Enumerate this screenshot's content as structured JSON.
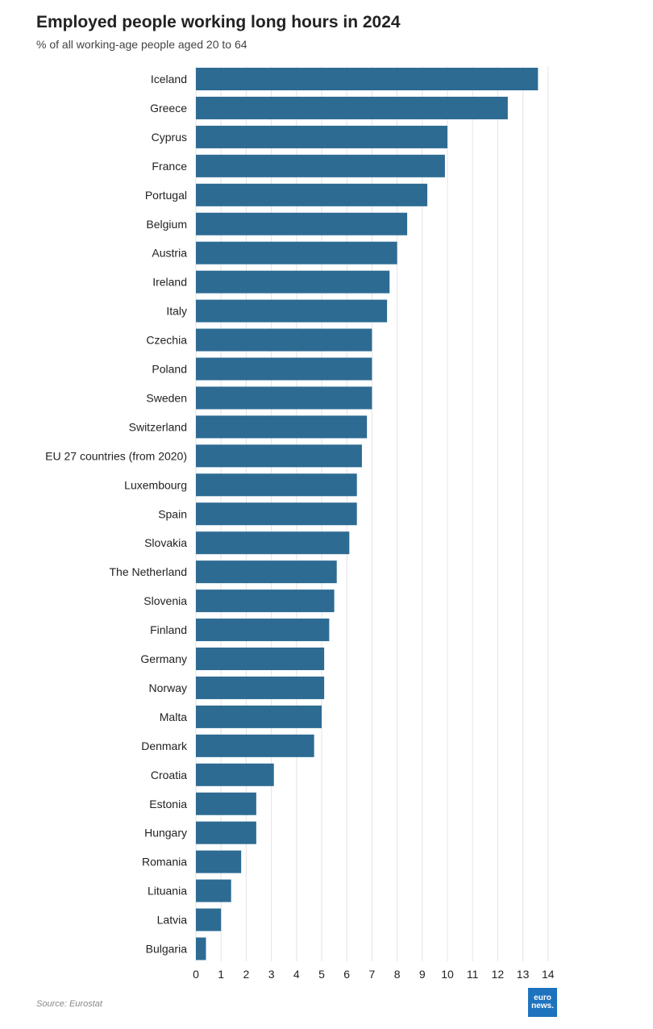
{
  "title": "Employed people working long hours in 2024",
  "subtitle": "% of all working-age people aged 20 to 64",
  "source": "Source: Eurostat",
  "logo": {
    "line1": "euro",
    "line2": "news."
  },
  "colors": {
    "bar": "#2d6b93",
    "grid": "#e3e3e3",
    "logo": "#1e73be"
  },
  "chart_data": {
    "type": "bar",
    "orientation": "horizontal",
    "categories": [
      "Iceland",
      "Greece",
      "Cyprus",
      "France",
      "Portugal",
      "Belgium",
      "Austria",
      "Ireland",
      "Italy",
      "Czechia",
      "Poland",
      "Sweden",
      "Switzerland",
      "EU 27 countries (from 2020)",
      "Luxembourg",
      "Spain",
      "Slovakia",
      "The Netherland",
      "Slovenia",
      "Finland",
      "Germany",
      "Norway",
      "Malta",
      "Denmark",
      "Croatia",
      "Estonia",
      "Hungary",
      "Romania",
      "Lituania",
      "Latvia",
      "Bulgaria"
    ],
    "values": [
      13.6,
      12.4,
      10.0,
      9.9,
      9.2,
      8.4,
      8.0,
      7.7,
      7.6,
      7.0,
      7.0,
      7.0,
      6.8,
      6.6,
      6.4,
      6.4,
      6.1,
      5.6,
      5.5,
      5.3,
      5.1,
      5.1,
      5.0,
      4.7,
      3.1,
      2.4,
      2.4,
      1.8,
      1.4,
      1.0,
      0.4
    ],
    "x_ticks": [
      "0",
      "1",
      "2",
      "3",
      "4",
      "5",
      "6",
      "7",
      "8",
      "9",
      "10",
      "11",
      "12",
      "13",
      "14"
    ],
    "xlim": [
      0,
      14
    ],
    "grid": true
  }
}
